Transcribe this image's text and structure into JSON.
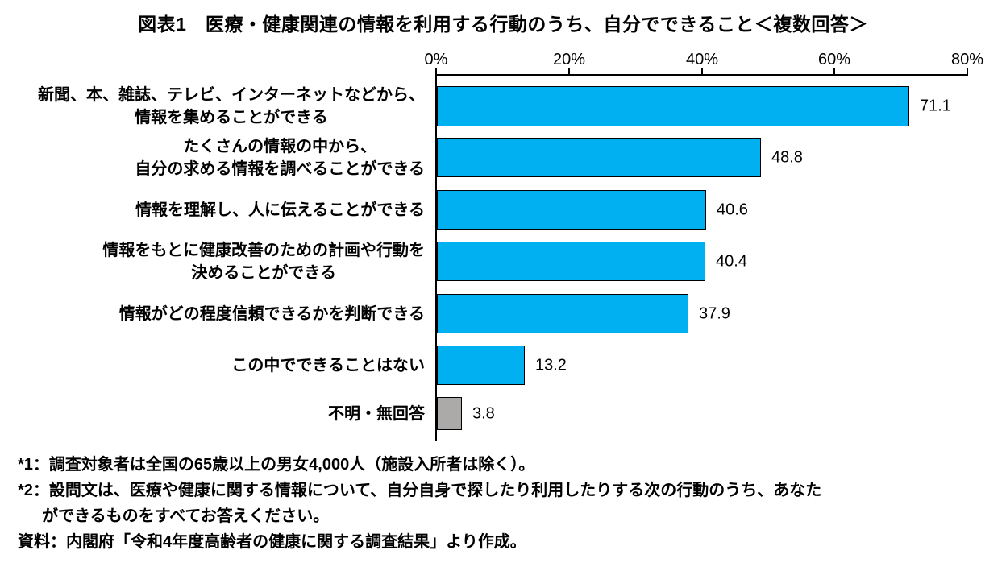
{
  "title": "図表1　医療・健康関連の情報を利用する行動のうち、自分でできること＜複数回答＞",
  "chart_data": {
    "type": "bar",
    "orientation": "horizontal",
    "title": "図表1　医療・健康関連の情報を利用する行動のうち、自分でできること＜複数回答＞",
    "categories": [
      [
        "新聞、本、雑誌、テレビ、インターネットなどから、",
        "情報を集めることができる"
      ],
      [
        "たくさんの情報の中から、",
        "自分の求める情報を調べることができる"
      ],
      [
        "情報を理解し、人に伝えることができる"
      ],
      [
        "情報をもとに健康改善のための計画や行動を",
        "決めることができる"
      ],
      [
        "情報がどの程度信頼できるかを判断できる"
      ],
      [
        "この中でできることはない"
      ],
      [
        "不明・無回答"
      ]
    ],
    "values": [
      71.1,
      48.8,
      40.6,
      40.4,
      37.9,
      13.2,
      3.8
    ],
    "value_labels": [
      "71.1",
      "48.8",
      "40.6",
      "40.4",
      "37.9",
      "13.2",
      "3.8"
    ],
    "bar_colors": [
      "#00B0F0",
      "#00B0F0",
      "#00B0F0",
      "#00B0F0",
      "#00B0F0",
      "#00B0F0",
      "#ACA9A9"
    ],
    "bar_border_color": "#000000",
    "xlim": [
      0,
      80
    ],
    "x_tick_values": [
      0,
      20,
      40,
      60,
      80
    ],
    "x_tick_labels": [
      "0%",
      "20%",
      "40%",
      "60%",
      "80%"
    ],
    "axis_position": "top",
    "grid": false,
    "legend": "none"
  },
  "footnotes": [
    {
      "text": "*1：調査対象者は全国の65歳以上の男女4,000人（施設入所者は除く）。",
      "indent": false
    },
    {
      "text": "*2：設問文は、医療や健康に関する情報について、自分自身で探したり利用したりする次の行動のうち、あなた",
      "indent": false
    },
    {
      "text": "ができるものをすべてお答えください。",
      "indent": true
    },
    {
      "text": "資料：内閣府「令和4年度高齢者の健康に関する調査結果」より作成。",
      "indent": false
    }
  ]
}
